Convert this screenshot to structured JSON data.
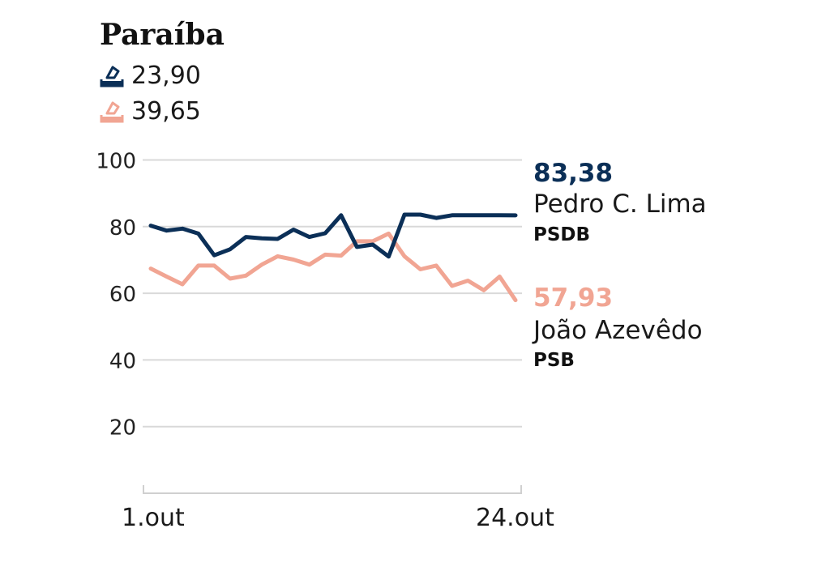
{
  "title": "Paraíba",
  "legend": [
    {
      "icon": "ballot-box-icon",
      "value": "23,90",
      "color": "#0b2f57"
    },
    {
      "icon": "ballot-box-icon",
      "value": "39,65",
      "color": "#f1a593"
    }
  ],
  "chart_data": {
    "type": "line",
    "title": "Paraíba",
    "xlabel": "",
    "ylabel": "",
    "x_range": [
      "1.out",
      "24.out"
    ],
    "x_ticks": [
      "1.out",
      "24.out"
    ],
    "y_ticks": [
      "20",
      "40",
      "60",
      "80",
      "100"
    ],
    "ylim": [
      0,
      100
    ],
    "grid": true,
    "series": [
      {
        "name": "Pedro C. Lima",
        "party": "PSDB",
        "end_label": "83,38",
        "color": "#0b2f57",
        "values": [
          80.3,
          78.8,
          79.4,
          77.9,
          71.4,
          73.2,
          76.9,
          76.5,
          76.3,
          79.1,
          76.9,
          78.0,
          83.4,
          73.9,
          74.6,
          71.0,
          83.6,
          83.6,
          82.6,
          83.4,
          83.4,
          83.4,
          83.4,
          83.38
        ]
      },
      {
        "name": "João Azevêdo",
        "party": "PSB",
        "end_label": "57,93",
        "color": "#f1a593",
        "values": [
          67.4,
          65.0,
          62.7,
          68.3,
          68.3,
          64.4,
          65.3,
          68.6,
          71.1,
          70.1,
          68.6,
          71.6,
          71.3,
          75.6,
          75.6,
          77.9,
          71.1,
          67.2,
          68.3,
          62.2,
          63.8,
          60.9,
          65.0,
          57.93
        ]
      }
    ]
  }
}
